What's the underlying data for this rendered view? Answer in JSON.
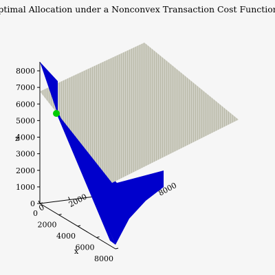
{
  "chart_data": {
    "type": "surface3d",
    "title": "Optimal Allocation under a Nonconvex Transaction Cost Function",
    "xlabel": "x",
    "ylabel": "",
    "zlabel": "z",
    "xlim": [
      0,
      8000
    ],
    "ylim": [
      0,
      8000
    ],
    "zlim": [
      0,
      8000
    ],
    "x_ticks": [
      "0",
      "2000",
      "4000",
      "6000",
      "8000"
    ],
    "y_ticks": [
      "0",
      "2000",
      "4000",
      "6000",
      "8000"
    ],
    "z_ticks": [
      "0",
      "1000",
      "2000",
      "3000",
      "4000",
      "5000",
      "6000",
      "7000",
      "8000"
    ],
    "surfaces": [
      {
        "kind": "plane",
        "color": "#cfcfc4",
        "stripe_color": "#b8b8a8"
      },
      {
        "kind": "cost-surface",
        "color": "#0000cc"
      }
    ],
    "optimum_point": {
      "z": 5400,
      "color": "#00cc00"
    }
  }
}
